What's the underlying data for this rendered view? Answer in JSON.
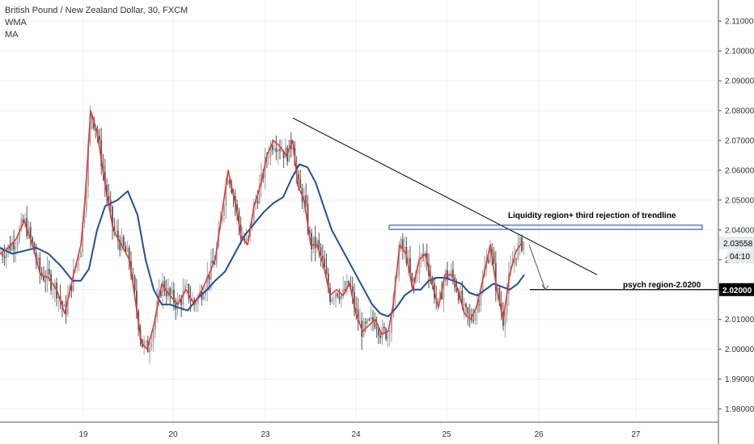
{
  "legend": {
    "title": "British Pound / New Zealand Dollar, 30, FXCM",
    "indicator_1": "WMA",
    "indicator_2": "MA"
  },
  "annotations": {
    "liquidity_label": "Liquidity region+ third rejection of trendline",
    "psych_label": "psych region-2.0200"
  },
  "price_axis": {
    "current_price": "2.03558",
    "countdown": "04:10",
    "marked_level": "2.02000"
  },
  "colors": {
    "bull": "#9aa5a8",
    "bear": "#555555",
    "wma": "#e53935",
    "ma": "#1f4e9c",
    "grid": "#eef0f2",
    "trendline": "#000000",
    "zone": "#1f4e9c"
  },
  "chart_data": {
    "type": "candlestick",
    "symbol": "GBPNZD",
    "timeframe": "30",
    "x_ticks": [
      "19",
      "20",
      "23",
      "24",
      "25",
      "26",
      "27"
    ],
    "y_ticks": [
      "2.11000",
      "2.10000",
      "2.09000",
      "2.08000",
      "2.07000",
      "2.06000",
      "2.05000",
      "2.04000",
      "2.03000",
      "2.02000",
      "2.01000",
      "2.00000",
      "1.99000",
      "1.98000"
    ],
    "ylim": [
      1.978,
      2.113
    ],
    "grid": true,
    "series_red_wma": [
      [
        0,
        2.032
      ],
      [
        10,
        2.034
      ],
      [
        20,
        2.037
      ],
      [
        30,
        2.043
      ],
      [
        40,
        2.035
      ],
      [
        50,
        2.025
      ],
      [
        60,
        2.024
      ],
      [
        70,
        2.02
      ],
      [
        80,
        2.012
      ],
      [
        90,
        2.024
      ],
      [
        100,
        2.035
      ],
      [
        105,
        2.05
      ],
      [
        112,
        2.08
      ],
      [
        120,
        2.073
      ],
      [
        130,
        2.055
      ],
      [
        140,
        2.04
      ],
      [
        150,
        2.035
      ],
      [
        160,
        2.03
      ],
      [
        168,
        2.015
      ],
      [
        175,
        2.002
      ],
      [
        182,
        2.0
      ],
      [
        190,
        2.008
      ],
      [
        200,
        2.022
      ],
      [
        210,
        2.018
      ],
      [
        220,
        2.015
      ],
      [
        230,
        2.02
      ],
      [
        240,
        2.015
      ],
      [
        250,
        2.02
      ],
      [
        258,
        2.025
      ],
      [
        266,
        2.03
      ],
      [
        274,
        2.045
      ],
      [
        282,
        2.06
      ],
      [
        290,
        2.05
      ],
      [
        298,
        2.038
      ],
      [
        306,
        2.035
      ],
      [
        314,
        2.048
      ],
      [
        322,
        2.055
      ],
      [
        330,
        2.065
      ],
      [
        338,
        2.07
      ],
      [
        346,
        2.068
      ],
      [
        354,
        2.065
      ],
      [
        362,
        2.07
      ],
      [
        368,
        2.055
      ],
      [
        376,
        2.05
      ],
      [
        384,
        2.035
      ],
      [
        392,
        2.035
      ],
      [
        400,
        2.028
      ],
      [
        408,
        2.018
      ],
      [
        416,
        2.02
      ],
      [
        424,
        2.018
      ],
      [
        432,
        2.022
      ],
      [
        440,
        2.012
      ],
      [
        448,
        2.006
      ],
      [
        456,
        2.008
      ],
      [
        464,
        2.01
      ],
      [
        472,
        2.005
      ],
      [
        480,
        2.006
      ],
      [
        486,
        2.015
      ],
      [
        494,
        2.035
      ],
      [
        502,
        2.032
      ],
      [
        510,
        2.02
      ],
      [
        518,
        2.03
      ],
      [
        526,
        2.032
      ],
      [
        534,
        2.022
      ],
      [
        542,
        2.014
      ],
      [
        550,
        2.025
      ],
      [
        558,
        2.025
      ],
      [
        566,
        2.02
      ],
      [
        574,
        2.012
      ],
      [
        582,
        2.01
      ],
      [
        590,
        2.015
      ],
      [
        598,
        2.025
      ],
      [
        606,
        2.035
      ],
      [
        614,
        2.02
      ],
      [
        622,
        2.01
      ],
      [
        630,
        2.025
      ],
      [
        638,
        2.033
      ],
      [
        646,
        2.036
      ]
    ],
    "series_blue_ma": [
      [
        0,
        2.034
      ],
      [
        15,
        2.032
      ],
      [
        30,
        2.033
      ],
      [
        45,
        2.034
      ],
      [
        60,
        2.032
      ],
      [
        75,
        2.028
      ],
      [
        90,
        2.023
      ],
      [
        100,
        2.023
      ],
      [
        110,
        2.027
      ],
      [
        120,
        2.04
      ],
      [
        130,
        2.048
      ],
      [
        145,
        2.05
      ],
      [
        158,
        2.053
      ],
      [
        170,
        2.045
      ],
      [
        180,
        2.03
      ],
      [
        190,
        2.02
      ],
      [
        200,
        2.015
      ],
      [
        210,
        2.015
      ],
      [
        220,
        2.014
      ],
      [
        232,
        2.013
      ],
      [
        244,
        2.017
      ],
      [
        256,
        2.02
      ],
      [
        266,
        2.023
      ],
      [
        278,
        2.026
      ],
      [
        290,
        2.032
      ],
      [
        302,
        2.038
      ],
      [
        314,
        2.042
      ],
      [
        326,
        2.046
      ],
      [
        338,
        2.049
      ],
      [
        350,
        2.051
      ],
      [
        360,
        2.057
      ],
      [
        370,
        2.062
      ],
      [
        380,
        2.061
      ],
      [
        390,
        2.056
      ],
      [
        400,
        2.048
      ],
      [
        410,
        2.04
      ],
      [
        420,
        2.035
      ],
      [
        430,
        2.03
      ],
      [
        440,
        2.025
      ],
      [
        450,
        2.02
      ],
      [
        460,
        2.015
      ],
      [
        470,
        2.012
      ],
      [
        480,
        2.011
      ],
      [
        490,
        2.014
      ],
      [
        500,
        2.018
      ],
      [
        510,
        2.02
      ],
      [
        520,
        2.02
      ],
      [
        530,
        2.023
      ],
      [
        540,
        2.024
      ],
      [
        550,
        2.024
      ],
      [
        560,
        2.023
      ],
      [
        570,
        2.022
      ],
      [
        580,
        2.019
      ],
      [
        590,
        2.018
      ],
      [
        600,
        2.02
      ],
      [
        610,
        2.022
      ],
      [
        620,
        2.021
      ],
      [
        630,
        2.02
      ],
      [
        640,
        2.022
      ],
      [
        648,
        2.025
      ]
    ],
    "trendline": {
      "x": [
        362,
        738
      ],
      "y": [
        2.0775,
        2.025
      ]
    },
    "liquidity_zone": {
      "y": [
        2.0402,
        2.0416
      ]
    },
    "psych_level": 2.02,
    "projection_arrow": {
      "from": [
        654,
        2.035
      ],
      "to": [
        674,
        2.02
      ]
    }
  }
}
